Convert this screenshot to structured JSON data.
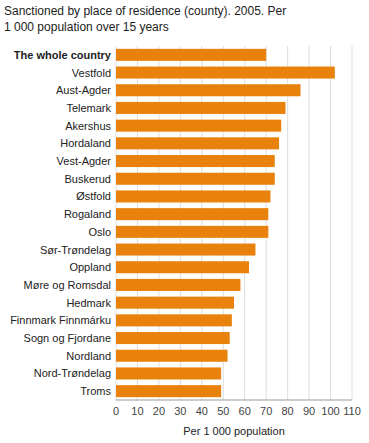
{
  "chart_data": {
    "type": "bar",
    "orientation": "horizontal",
    "title": "Sanctioned by place of residence (county). 2005. Per",
    "subtitle": "1 000 population over 15 years",
    "xlabel": "Per 1 000 population",
    "categories": [
      "The whole country",
      "Vestfold",
      "Aust-Agder",
      "Telemark",
      "Akershus",
      "Hordaland",
      "Vest-Agder",
      "Buskerud",
      "Østfold",
      "Rogaland",
      "Oslo",
      "Sør-Trøndelag",
      "Oppland",
      "Møre og Romsdal",
      "Hedmark",
      "Finnmark Finnmárku",
      "Sogn og Fjordane",
      "Nordland",
      "Nord-Trøndelag",
      "Troms"
    ],
    "values": [
      70,
      102,
      86,
      79,
      77,
      76,
      74,
      74,
      72,
      71,
      71,
      65,
      62,
      58,
      55,
      54,
      53,
      52,
      49,
      49
    ],
    "color": "#E8820C",
    "xlim": [
      0,
      110
    ],
    "xticks": [
      0,
      10,
      20,
      30,
      40,
      50,
      60,
      70,
      80,
      90,
      100,
      110
    ],
    "grid": true
  }
}
